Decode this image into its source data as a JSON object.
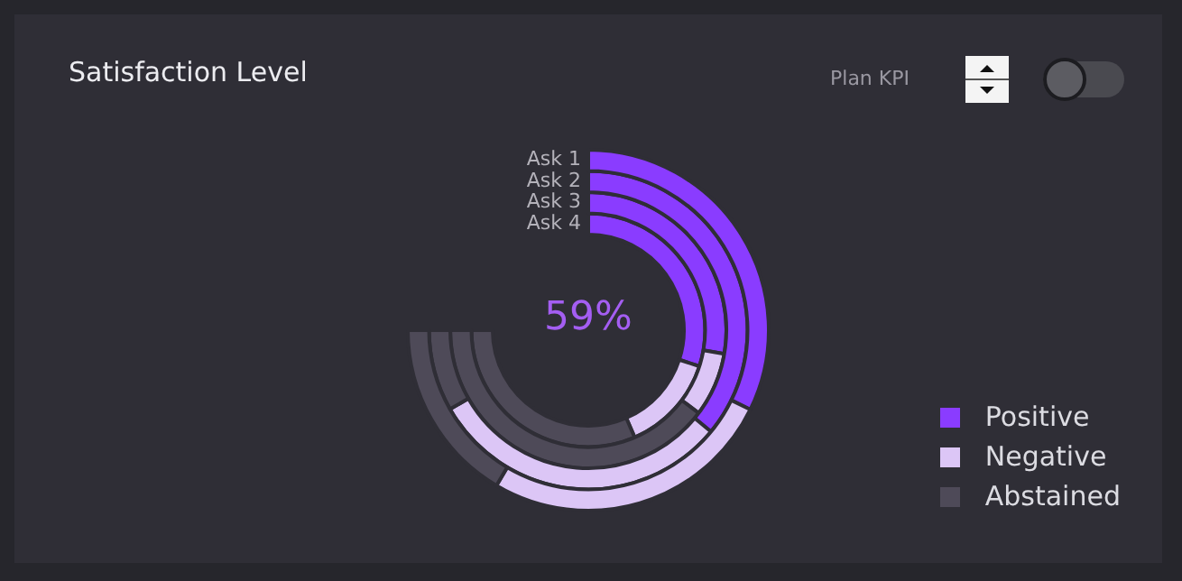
{
  "chart_data": {
    "type": "donut",
    "title": "Satisfaction Level",
    "categories": [
      "Positive",
      "Negative",
      "Abstained"
    ],
    "colors": [
      "#8a3cff",
      "#dcc6f6",
      "#4e4a58"
    ],
    "series": [
      {
        "name": "Ask 1",
        "values": [
          43,
          35,
          22
        ]
      },
      {
        "name": "Ask 2",
        "values": [
          48,
          41,
          11
        ]
      },
      {
        "name": "Ask 3",
        "values": [
          37,
          10,
          53
        ]
      },
      {
        "name": "Ask 4",
        "values": [
          40,
          18,
          42
        ]
      }
    ],
    "annotations": [
      "59%",
      "Plan KPI"
    ],
    "legend": "bottom right"
  }
}
